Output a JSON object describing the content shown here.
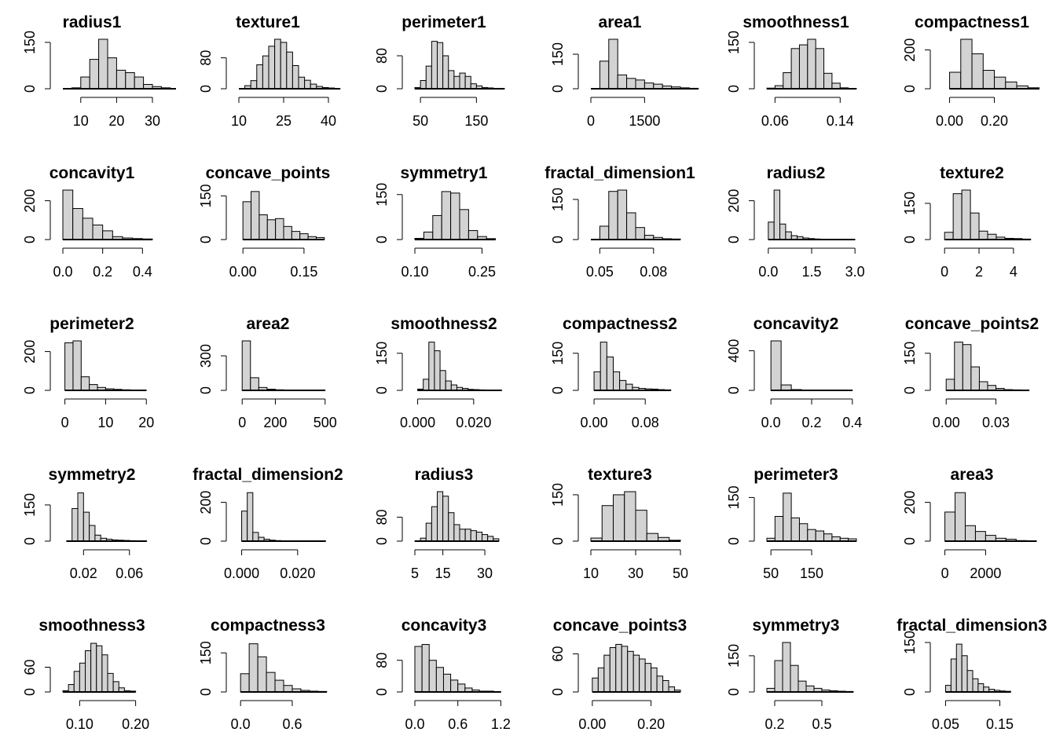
{
  "figure": {
    "layout": "grid 5 rows x 6 columns",
    "bar_fill": "#d3d3d3",
    "bar_stroke": "#000000"
  },
  "chart_data": [
    {
      "type": "bar",
      "title": "radius1",
      "bin_start": 5,
      "bin_width": 2.5,
      "values": [
        0,
        3,
        38,
        95,
        160,
        100,
        60,
        52,
        38,
        14,
        7,
        3,
        1
      ],
      "xlim": [
        5,
        30
      ],
      "xticks": [
        "10",
        "20",
        "30"
      ],
      "xtick_values": [
        10,
        20,
        30
      ],
      "yticks": [
        "0",
        "150"
      ],
      "ytick_values": [
        0,
        150
      ],
      "ymax": 160
    },
    {
      "type": "bar",
      "title": "texture1",
      "bin_start": 10,
      "bin_width": 2,
      "values": [
        0,
        8,
        21,
        62,
        85,
        110,
        128,
        120,
        95,
        60,
        30,
        22,
        12,
        6,
        3,
        2,
        0
      ],
      "xlim": [
        10,
        40
      ],
      "xticks": [
        "10",
        "25",
        "40"
      ],
      "xtick_values": [
        10,
        25,
        40
      ],
      "yticks": [
        "0",
        "80"
      ],
      "ytick_values": [
        0,
        80
      ],
      "ymax": 128
    },
    {
      "type": "bar",
      "title": "perimeter1",
      "bin_start": 40,
      "bin_width": 10,
      "values": [
        3,
        20,
        55,
        115,
        112,
        80,
        44,
        30,
        38,
        30,
        12,
        7,
        3,
        2,
        1,
        1
      ],
      "xlim": [
        40,
        200
      ],
      "xticks": [
        "50",
        "150"
      ],
      "xtick_values": [
        50,
        150
      ],
      "yticks": [
        "0",
        "80"
      ],
      "ytick_values": [
        0,
        80
      ],
      "ymax": 120
    },
    {
      "type": "bar",
      "title": "area1",
      "bin_start": 0,
      "bin_width": 250,
      "values": [
        0,
        120,
        215,
        60,
        45,
        38,
        25,
        20,
        12,
        8,
        4,
        2
      ],
      "xlim": [
        0,
        2500
      ],
      "xticks": [
        "0",
        "1500"
      ],
      "xtick_values": [
        0,
        1500
      ],
      "yticks": [
        "0",
        "150"
      ],
      "ytick_values": [
        0,
        150
      ],
      "ymax": 215
    },
    {
      "type": "bar",
      "title": "smoothness1",
      "bin_start": 0.05,
      "bin_width": 0.01,
      "values": [
        2,
        10,
        52,
        130,
        142,
        160,
        130,
        50,
        18,
        3,
        1
      ],
      "xlim": [
        0.05,
        0.16
      ],
      "xticks": [
        "0.06",
        "0.14"
      ],
      "xtick_values": [
        0.06,
        0.14
      ],
      "yticks": [
        "0",
        "150"
      ],
      "ytick_values": [
        0,
        150
      ],
      "ymax": 160
    },
    {
      "type": "bar",
      "title": "compactness1",
      "bin_start": 0,
      "bin_width": 0.05,
      "values": [
        85,
        255,
        180,
        95,
        60,
        35,
        15,
        5
      ],
      "xlim": [
        -0.03,
        0.37
      ],
      "xticks": [
        "0.00",
        "0.20"
      ],
      "xtick_values": [
        0,
        0.2
      ],
      "yticks": [
        "0",
        "200"
      ],
      "ytick_values": [
        0,
        200
      ],
      "ymax": 255
    },
    {
      "type": "bar",
      "title": "concavity1",
      "bin_start": 0,
      "bin_width": 0.05,
      "values": [
        255,
        160,
        110,
        75,
        45,
        15,
        8,
        5,
        3
      ],
      "xlim": [
        0,
        0.45
      ],
      "xticks": [
        "0.0",
        "0.2",
        "0.4"
      ],
      "xtick_values": [
        0,
        0.2,
        0.4
      ],
      "yticks": [
        "0",
        "200"
      ],
      "ytick_values": [
        0,
        200
      ],
      "ymax": 255
    },
    {
      "type": "bar",
      "title": "concave_points",
      "bin_start": 0,
      "bin_width": 0.02,
      "values": [
        130,
        165,
        85,
        68,
        72,
        45,
        28,
        20,
        10,
        7
      ],
      "xlim": [
        -0.01,
        0.21
      ],
      "xticks": [
        "0.00",
        "0.15"
      ],
      "xtick_values": [
        0,
        0.15
      ],
      "yticks": [
        "0",
        "150"
      ],
      "ytick_values": [
        0,
        150
      ],
      "ymax": 170
    },
    {
      "type": "bar",
      "title": "symmetry1",
      "bin_start": 0.1,
      "bin_width": 0.02,
      "values": [
        4,
        25,
        80,
        160,
        155,
        100,
        30,
        10,
        3
      ],
      "xlim": [
        0.1,
        0.3
      ],
      "xticks": [
        "0.10",
        "0.25"
      ],
      "xtick_values": [
        0.1,
        0.25
      ],
      "yticks": [
        "0",
        "150"
      ],
      "ytick_values": [
        0,
        150
      ],
      "ymax": 165
    },
    {
      "type": "bar",
      "title": "fractal_dimension1",
      "bin_start": 0.045,
      "bin_width": 0.005,
      "values": [
        0,
        50,
        180,
        185,
        100,
        45,
        16,
        8,
        3,
        2
      ],
      "xlim": [
        0.045,
        0.095
      ],
      "xticks": [
        "0.05",
        "0.08"
      ],
      "xtick_values": [
        0.05,
        0.08
      ],
      "yticks": [
        "0",
        "150"
      ],
      "ytick_values": [
        0,
        150
      ],
      "ymax": 185
    },
    {
      "type": "bar",
      "title": "radius2",
      "bin_start": 0,
      "bin_width": 0.2,
      "values": [
        90,
        255,
        80,
        40,
        20,
        15,
        8,
        5,
        3,
        2,
        1,
        1,
        1,
        0,
        1
      ],
      "xlim": [
        -0.05,
        3.05
      ],
      "xticks": [
        "0.0",
        "1.5",
        "3.0"
      ],
      "xtick_values": [
        0,
        1.5,
        3
      ],
      "yticks": [
        "0",
        "200"
      ],
      "ytick_values": [
        0,
        200
      ],
      "ymax": 255
    },
    {
      "type": "bar",
      "title": "texture2",
      "bin_start": 0,
      "bin_width": 0.5,
      "values": [
        30,
        190,
        205,
        110,
        35,
        22,
        10,
        5,
        4,
        2
      ],
      "xlim": [
        -0.1,
        5.1
      ],
      "xticks": [
        "0",
        "2",
        "4"
      ],
      "xtick_values": [
        0,
        2,
        4
      ],
      "yticks": [
        "0",
        "150"
      ],
      "ytick_values": [
        0,
        150
      ],
      "ymax": 205
    },
    {
      "type": "bar",
      "title": "perimeter2",
      "bin_start": 0,
      "bin_width": 2,
      "values": [
        245,
        255,
        70,
        30,
        15,
        8,
        5,
        3,
        2,
        1
      ],
      "xlim": [
        -0.5,
        21.5
      ],
      "xticks": [
        "0",
        "10",
        "20"
      ],
      "xtick_values": [
        0,
        10,
        20
      ],
      "yticks": [
        "0",
        "200"
      ],
      "ytick_values": [
        0,
        200
      ],
      "ymax": 255
    },
    {
      "type": "bar",
      "title": "area2",
      "bin_start": 0,
      "bin_width": 50,
      "values": [
        430,
        110,
        25,
        10,
        5,
        3,
        2,
        1,
        1,
        1
      ],
      "xlim": [
        -20,
        520
      ],
      "xticks": [
        "0",
        "200",
        "500"
      ],
      "xtick_values": [
        0,
        200,
        500
      ],
      "yticks": [
        "0",
        "300"
      ],
      "ytick_values": [
        0,
        300
      ],
      "ymax": 430
    },
    {
      "type": "bar",
      "title": "smoothness2",
      "bin_start": 0,
      "bin_width": 0.002,
      "values": [
        5,
        45,
        195,
        160,
        80,
        38,
        22,
        12,
        8,
        4,
        3,
        2,
        1,
        1,
        1
      ],
      "xlim": [
        -0.001,
        0.031
      ],
      "xticks": [
        "0.000",
        "0.020"
      ],
      "xtick_values": [
        0,
        0.02
      ],
      "yticks": [
        "0",
        "150"
      ],
      "ytick_values": [
        0,
        150
      ],
      "ymax": 200
    },
    {
      "type": "bar",
      "title": "compactness2",
      "bin_start": 0,
      "bin_width": 0.01,
      "values": [
        75,
        195,
        135,
        75,
        40,
        25,
        12,
        8,
        6,
        5,
        3,
        2
      ],
      "xlim": [
        -0.005,
        0.135
      ],
      "xticks": [
        "0.00",
        "0.08"
      ],
      "xtick_values": [
        0,
        0.08
      ],
      "yticks": [
        "0",
        "150"
      ],
      "ytick_values": [
        0,
        150
      ],
      "ymax": 200
    },
    {
      "type": "bar",
      "title": "concavity2",
      "bin_start": 0,
      "bin_width": 0.05,
      "values": [
        500,
        55,
        8,
        3,
        1,
        1,
        0,
        1
      ],
      "xlim": [
        -0.02,
        0.42
      ],
      "xticks": [
        "0.0",
        "0.2",
        "0.4"
      ],
      "xtick_values": [
        0,
        0.2,
        0.4
      ],
      "yticks": [
        "0",
        "400"
      ],
      "ytick_values": [
        0,
        400
      ],
      "ymax": 500
    },
    {
      "type": "bar",
      "title": "concave_points2",
      "bin_start": 0,
      "bin_width": 0.005,
      "values": [
        45,
        195,
        185,
        95,
        35,
        20,
        8,
        3,
        2,
        1
      ],
      "xlim": [
        -0.002,
        0.052
      ],
      "xticks": [
        "0.00",
        "0.03"
      ],
      "xtick_values": [
        0,
        0.03
      ],
      "yticks": [
        "0",
        "150"
      ],
      "ytick_values": [
        0,
        150
      ],
      "ymax": 200
    },
    {
      "type": "bar",
      "title": "symmetry2",
      "bin_start": 0.005,
      "bin_width": 0.005,
      "values": [
        0,
        135,
        200,
        120,
        65,
        25,
        12,
        8,
        5,
        4,
        3,
        2,
        1,
        1
      ],
      "xlim": [
        0.002,
        0.08
      ],
      "xticks": [
        "0.02",
        "0.06"
      ],
      "xtick_values": [
        0.02,
        0.06
      ],
      "yticks": [
        "0",
        "150"
      ],
      "ytick_values": [
        0,
        150
      ],
      "ymax": 205
    },
    {
      "type": "bar",
      "title": "fractal_dimension2",
      "bin_start": 0,
      "bin_width": 0.002,
      "values": [
        155,
        250,
        45,
        20,
        10,
        5,
        3,
        2,
        1,
        1,
        1,
        1,
        1,
        1,
        1
      ],
      "xlim": [
        -0.001,
        0.031
      ],
      "xticks": [
        "0.000",
        "0.020"
      ],
      "xtick_values": [
        0,
        0.02
      ],
      "yticks": [
        "0",
        "200"
      ],
      "ytick_values": [
        0,
        200
      ],
      "ymax": 255
    },
    {
      "type": "bar",
      "title": "radius3",
      "bin_start": 5,
      "bin_width": 2,
      "values": [
        1,
        10,
        60,
        115,
        165,
        150,
        95,
        55,
        40,
        40,
        35,
        30,
        22,
        16,
        8
      ],
      "xlim": [
        5,
        37
      ],
      "xticks": [
        "5",
        "15",
        "30"
      ],
      "xtick_values": [
        5,
        15,
        30
      ],
      "yticks": [
        "0",
        "80"
      ],
      "ytick_values": [
        0,
        80
      ],
      "ymax": 165
    },
    {
      "type": "bar",
      "title": "texture3",
      "bin_start": 10,
      "bin_width": 5,
      "values": [
        10,
        115,
        150,
        160,
        100,
        25,
        12,
        3
      ],
      "xlim": [
        10,
        50
      ],
      "xticks": [
        "10",
        "30",
        "50"
      ],
      "xtick_values": [
        10,
        30,
        50
      ],
      "yticks": [
        "0",
        "150"
      ],
      "ytick_values": [
        0,
        150
      ],
      "ymax": 160
    },
    {
      "type": "bar",
      "title": "perimeter3",
      "bin_start": 40,
      "bin_width": 20,
      "values": [
        10,
        85,
        165,
        80,
        60,
        40,
        35,
        25,
        15,
        10,
        8
      ],
      "xlim": [
        40,
        260
      ],
      "xticks": [
        "50",
        "150"
      ],
      "xtick_values": [
        50,
        150
      ],
      "yticks": [
        "0",
        "150"
      ],
      "ytick_values": [
        0,
        150
      ],
      "ymax": 170
    },
    {
      "type": "bar",
      "title": "area3",
      "bin_start": 0,
      "bin_width": 500,
      "values": [
        150,
        250,
        80,
        50,
        30,
        15,
        10,
        3,
        1
      ],
      "xlim": [
        -100,
        4300
      ],
      "xticks": [
        "0",
        "2000"
      ],
      "xtick_values": [
        0,
        2000
      ],
      "yticks": [
        "0",
        "200"
      ],
      "ytick_values": [
        0,
        200
      ],
      "ymax": 255
    },
    {
      "type": "bar",
      "title": "smoothness3",
      "bin_start": 0.07,
      "bin_width": 0.01,
      "values": [
        3,
        18,
        50,
        70,
        100,
        118,
        112,
        90,
        45,
        25,
        10,
        3,
        2
      ],
      "xlim": [
        0.07,
        0.23
      ],
      "xticks": [
        "0.10",
        "0.20"
      ],
      "xtick_values": [
        0.1,
        0.2
      ],
      "yticks": [
        "0",
        "60"
      ],
      "ytick_values": [
        0,
        60
      ],
      "ymax": 120
    },
    {
      "type": "bar",
      "title": "compactness3",
      "bin_start": 0,
      "bin_width": 0.1,
      "values": [
        70,
        185,
        135,
        75,
        45,
        25,
        12,
        6,
        3,
        2
      ],
      "xlim": [
        -0.02,
        1.02
      ],
      "xticks": [
        "0.0",
        "0.6"
      ],
      "xtick_values": [
        0,
        0.6
      ],
      "yticks": [
        "0",
        "150"
      ],
      "ytick_values": [
        0,
        150
      ],
      "ymax": 190
    },
    {
      "type": "bar",
      "title": "concavity3",
      "bin_start": 0,
      "bin_width": 0.1,
      "values": [
        115,
        120,
        80,
        62,
        45,
        30,
        20,
        10,
        5,
        2,
        2,
        1
      ],
      "xlim": [
        0,
        1.25
      ],
      "xticks": [
        "0.0",
        "0.6",
        "1.2"
      ],
      "xtick_values": [
        0,
        0.6,
        1.2
      ],
      "yticks": [
        "0",
        "80"
      ],
      "ytick_values": [
        0,
        80
      ],
      "ymax": 125
    },
    {
      "type": "bar",
      "title": "concave_points3",
      "bin_start": 0,
      "bin_width": 0.02,
      "values": [
        22,
        38,
        58,
        70,
        75,
        72,
        64,
        58,
        52,
        45,
        38,
        25,
        18,
        8,
        3
      ],
      "xlim": [
        -0.005,
        0.3
      ],
      "xticks": [
        "0.00",
        "0.20"
      ],
      "xtick_values": [
        0,
        0.2
      ],
      "yticks": [
        "0",
        "60"
      ],
      "ytick_values": [
        0,
        60
      ],
      "ymax": 78
    },
    {
      "type": "bar",
      "title": "symmetry3",
      "bin_start": 0.15,
      "bin_width": 0.05,
      "values": [
        15,
        130,
        205,
        110,
        45,
        25,
        15,
        8,
        5,
        3,
        2
      ],
      "xlim": [
        0.15,
        0.72
      ],
      "xticks": [
        "0.2",
        "0.5"
      ],
      "xtick_values": [
        0.2,
        0.5
      ],
      "yticks": [
        "0",
        "150"
      ],
      "ytick_values": [
        0,
        150
      ],
      "ymax": 205
    },
    {
      "type": "bar",
      "title": "fractal_dimension3",
      "bin_start": 0.05,
      "bin_width": 0.01,
      "values": [
        20,
        100,
        145,
        110,
        65,
        40,
        25,
        15,
        8,
        5,
        3,
        2
      ],
      "xlim": [
        0.045,
        0.21
      ],
      "xticks": [
        "0.05",
        "0.15"
      ],
      "xtick_values": [
        0.05,
        0.15
      ],
      "yticks": [
        "0",
        "150"
      ],
      "ytick_values": [
        0,
        150
      ],
      "ymax": 150
    }
  ]
}
